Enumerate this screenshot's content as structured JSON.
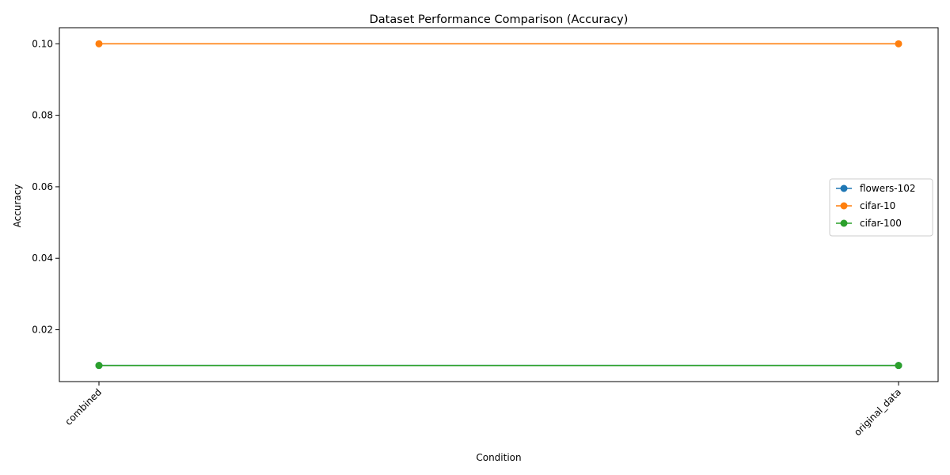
{
  "chart_data": {
    "type": "line",
    "title": "Dataset Performance Comparison (Accuracy)",
    "xlabel": "Condition",
    "ylabel": "Accuracy",
    "categories": [
      "combined",
      "original_data"
    ],
    "ylim": [
      0.0055,
      0.1045
    ],
    "yticks": [
      0.02,
      0.04,
      0.06,
      0.08,
      0.1
    ],
    "ytick_labels": [
      "0.02",
      "0.04",
      "0.06",
      "0.08",
      "0.10"
    ],
    "grid": false,
    "legend_position": "center-right",
    "markers": true,
    "series": [
      {
        "name": "flowers-102",
        "color": "#1f77b4",
        "values": [
          0.01,
          0.01
        ]
      },
      {
        "name": "cifar-10",
        "color": "#ff7f0e",
        "values": [
          0.1,
          0.1
        ]
      },
      {
        "name": "cifar-100",
        "color": "#2ca02c",
        "values": [
          0.01,
          0.01
        ]
      }
    ]
  }
}
